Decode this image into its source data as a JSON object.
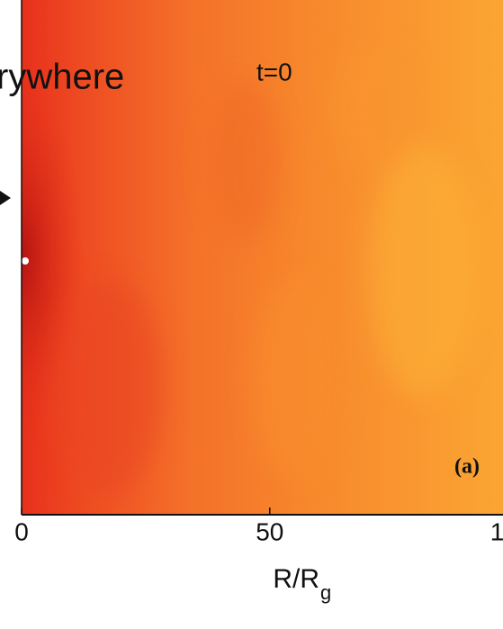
{
  "chart_data": {
    "type": "heatmap-panel",
    "title": "rywhere",
    "annotation": "t=0",
    "panel_label": "(a)",
    "x_label": "R/R",
    "x_label_subscript": "g",
    "xlim": [
      0,
      97
    ],
    "xticks": [
      0,
      50,
      {
        "value": 100,
        "label": "1"
      }
    ]
  }
}
